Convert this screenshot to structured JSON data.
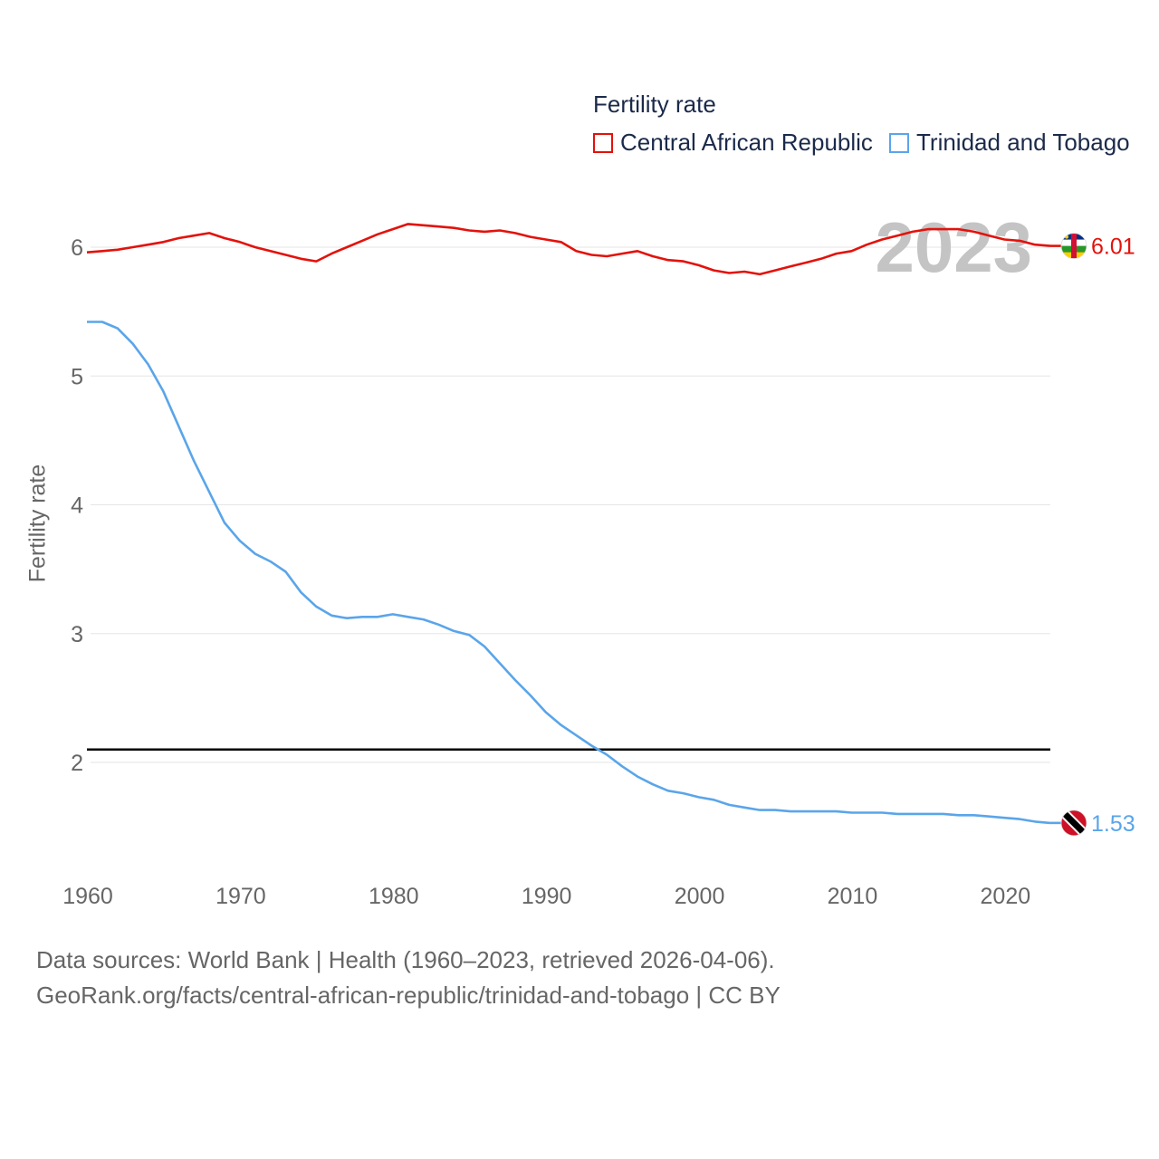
{
  "legend": {
    "title": "Fertility rate",
    "items": [
      {
        "label": "Central African Republic",
        "color": "#e3120b"
      },
      {
        "label": "Trinidad and Tobago",
        "color": "#5aa5ea"
      }
    ]
  },
  "year_label": "2023",
  "source": {
    "line1": "Data sources: World Bank | Health (1960–2023, retrieved 2026-04-06).",
    "line2": "GeoRank.org/facts/central-african-republic/trinidad-and-tobago | CC BY"
  },
  "chart_data": {
    "type": "line",
    "title": "Fertility rate",
    "xlabel": "",
    "ylabel": "Fertility rate",
    "xlim": [
      1960,
      2023
    ],
    "ylim": [
      1.3,
      6.4
    ],
    "x_ticks": [
      1960,
      1970,
      1980,
      1990,
      2000,
      2010,
      2020
    ],
    "y_ticks": [
      2,
      3,
      4,
      5,
      6
    ],
    "grid": true,
    "reference_line": {
      "y": 2.1,
      "color": "#000000"
    },
    "x": [
      1960,
      1961,
      1962,
      1963,
      1964,
      1965,
      1966,
      1967,
      1968,
      1969,
      1970,
      1971,
      1972,
      1973,
      1974,
      1975,
      1976,
      1977,
      1978,
      1979,
      1980,
      1981,
      1982,
      1983,
      1984,
      1985,
      1986,
      1987,
      1988,
      1989,
      1990,
      1991,
      1992,
      1993,
      1994,
      1995,
      1996,
      1997,
      1998,
      1999,
      2000,
      2001,
      2002,
      2003,
      2004,
      2005,
      2006,
      2007,
      2008,
      2009,
      2010,
      2011,
      2012,
      2013,
      2014,
      2015,
      2016,
      2017,
      2018,
      2019,
      2020,
      2021,
      2022,
      2023
    ],
    "series": [
      {
        "name": "Central African Republic",
        "color": "#e3120b",
        "end_label": "6.01",
        "values": [
          5.96,
          5.97,
          5.98,
          6.0,
          6.02,
          6.04,
          6.07,
          6.09,
          6.11,
          6.07,
          6.04,
          6.0,
          5.97,
          5.94,
          5.91,
          5.89,
          5.95,
          6.0,
          6.05,
          6.1,
          6.14,
          6.18,
          6.17,
          6.16,
          6.15,
          6.13,
          6.12,
          6.13,
          6.11,
          6.08,
          6.06,
          6.04,
          5.97,
          5.94,
          5.93,
          5.95,
          5.97,
          5.93,
          5.9,
          5.89,
          5.86,
          5.82,
          5.8,
          5.81,
          5.79,
          5.82,
          5.85,
          5.88,
          5.91,
          5.95,
          5.97,
          6.02,
          6.06,
          6.09,
          6.12,
          6.14,
          6.14,
          6.14,
          6.12,
          6.09,
          6.06,
          6.05,
          6.02,
          6.01
        ]
      },
      {
        "name": "Trinidad and Tobago",
        "color": "#5aa5ea",
        "end_label": "1.53",
        "values": [
          5.42,
          5.42,
          5.37,
          5.25,
          5.09,
          4.88,
          4.61,
          4.34,
          4.1,
          3.86,
          3.72,
          3.62,
          3.56,
          3.48,
          3.32,
          3.21,
          3.14,
          3.12,
          3.13,
          3.13,
          3.15,
          3.13,
          3.11,
          3.07,
          3.02,
          2.99,
          2.9,
          2.77,
          2.64,
          2.52,
          2.39,
          2.29,
          2.21,
          2.13,
          2.06,
          1.97,
          1.89,
          1.83,
          1.78,
          1.76,
          1.73,
          1.71,
          1.67,
          1.65,
          1.63,
          1.63,
          1.62,
          1.62,
          1.62,
          1.62,
          1.61,
          1.61,
          1.61,
          1.6,
          1.6,
          1.6,
          1.6,
          1.59,
          1.59,
          1.58,
          1.57,
          1.56,
          1.54,
          1.53
        ]
      }
    ]
  }
}
